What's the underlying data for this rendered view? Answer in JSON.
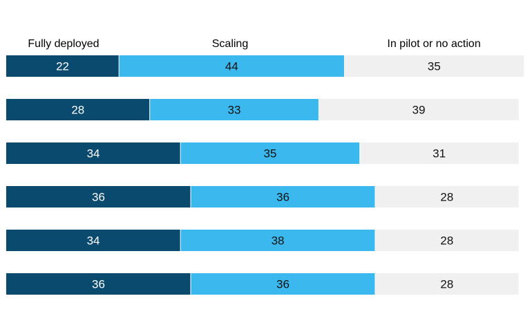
{
  "chart_data": {
    "type": "bar",
    "orientation": "horizontal",
    "stacked": true,
    "series": [
      {
        "name": "Fully deployed",
        "values": [
          22,
          28,
          34,
          36,
          34,
          36
        ]
      },
      {
        "name": "Scaling",
        "values": [
          44,
          33,
          35,
          36,
          38,
          36
        ]
      },
      {
        "name": "In pilot or no action",
        "values": [
          35,
          39,
          31,
          28,
          28,
          28
        ]
      }
    ],
    "xlim": [
      0,
      101
    ],
    "grid": false,
    "legend_position": "top"
  },
  "colors": {
    "fully_deployed": "#0b4a6f",
    "scaling": "#3bb9ee",
    "in_pilot": "#f0f0f0",
    "label_on_dark": "#ffffff",
    "label_on_light": "#111111"
  }
}
